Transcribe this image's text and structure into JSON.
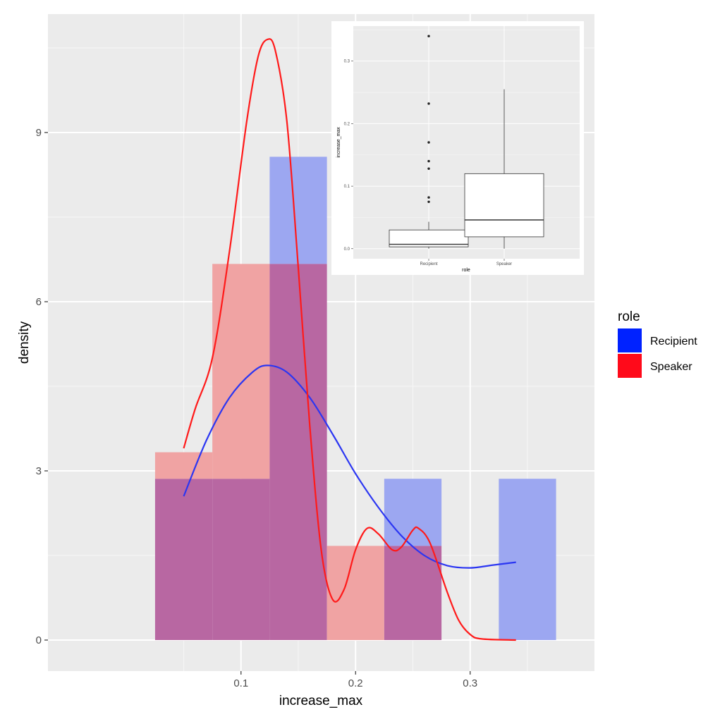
{
  "chart_data": [
    {
      "type": "histogram+density",
      "title": "",
      "xlabel": "increase_max",
      "ylabel": "density",
      "xlim": [
        -0.0685,
        0.4085
      ],
      "ylim": [
        -0.55,
        11.1
      ],
      "x_ticks": [
        0.1,
        0.2,
        0.3
      ],
      "x_tick_labels": [
        "0.1",
        "0.2",
        "0.3"
      ],
      "y_ticks": [
        0,
        3,
        6,
        9
      ],
      "y_tick_labels": [
        "0",
        "3",
        "6",
        "9"
      ],
      "grid": true,
      "legend": {
        "title": "role",
        "placement": "right",
        "entries": [
          "Recipient",
          "Speaker"
        ]
      },
      "colors": {
        "Recipient": "#0022ff",
        "Speaker": "#ff0a1a",
        "overlap": "#b867a2",
        "panel": "#ebebeb"
      },
      "series": [
        {
          "name": "Recipient",
          "bins": [
            {
              "x0": 0.025,
              "x1": 0.075,
              "density": 2.86
            },
            {
              "x0": 0.075,
              "x1": 0.125,
              "density": 2.86
            },
            {
              "x0": 0.125,
              "x1": 0.175,
              "density": 8.57
            },
            {
              "x0": 0.175,
              "x1": 0.225,
              "density": 0
            },
            {
              "x0": 0.225,
              "x1": 0.275,
              "density": 2.86
            },
            {
              "x0": 0.275,
              "x1": 0.325,
              "density": 0
            },
            {
              "x0": 0.325,
              "x1": 0.375,
              "density": 2.86
            }
          ],
          "density_curve": [
            [
              0.05,
              2.55
            ],
            [
              0.07,
              3.55
            ],
            [
              0.09,
              4.3
            ],
            [
              0.11,
              4.75
            ],
            [
              0.123,
              4.87
            ],
            [
              0.14,
              4.75
            ],
            [
              0.16,
              4.3
            ],
            [
              0.18,
              3.65
            ],
            [
              0.2,
              2.95
            ],
            [
              0.22,
              2.35
            ],
            [
              0.24,
              1.85
            ],
            [
              0.26,
              1.5
            ],
            [
              0.28,
              1.32
            ],
            [
              0.3,
              1.28
            ],
            [
              0.32,
              1.33
            ],
            [
              0.34,
              1.38
            ]
          ]
        },
        {
          "name": "Speaker",
          "bins": [
            {
              "x0": 0.025,
              "x1": 0.075,
              "density": 3.33
            },
            {
              "x0": 0.075,
              "x1": 0.125,
              "density": 6.67
            },
            {
              "x0": 0.125,
              "x1": 0.175,
              "density": 6.67
            },
            {
              "x0": 0.175,
              "x1": 0.225,
              "density": 1.67
            },
            {
              "x0": 0.225,
              "x1": 0.275,
              "density": 1.67
            },
            {
              "x0": 0.275,
              "x1": 0.325,
              "density": 0
            },
            {
              "x0": 0.325,
              "x1": 0.375,
              "density": 0
            }
          ],
          "density_curve": [
            [
              0.05,
              3.4
            ],
            [
              0.06,
              4.1
            ],
            [
              0.075,
              5.0
            ],
            [
              0.09,
              6.9
            ],
            [
              0.105,
              9.2
            ],
            [
              0.115,
              10.35
            ],
            [
              0.123,
              10.65
            ],
            [
              0.13,
              10.45
            ],
            [
              0.14,
              9.2
            ],
            [
              0.15,
              6.6
            ],
            [
              0.16,
              3.8
            ],
            [
              0.17,
              1.6
            ],
            [
              0.18,
              0.72
            ],
            [
              0.19,
              0.9
            ],
            [
              0.2,
              1.6
            ],
            [
              0.21,
              1.98
            ],
            [
              0.22,
              1.88
            ],
            [
              0.232,
              1.6
            ],
            [
              0.24,
              1.65
            ],
            [
              0.25,
              1.95
            ],
            [
              0.255,
              1.98
            ],
            [
              0.265,
              1.72
            ],
            [
              0.28,
              0.85
            ],
            [
              0.29,
              0.35
            ],
            [
              0.3,
              0.1
            ],
            [
              0.31,
              0.02
            ],
            [
              0.34,
              0.0
            ]
          ]
        }
      ]
    },
    {
      "type": "boxplot",
      "title": "",
      "xlabel": "role",
      "ylabel": "increase_max",
      "categories": [
        "Recipient",
        "Speaker"
      ],
      "y_ticks": [
        0.0,
        0.1,
        0.2,
        0.3
      ],
      "y_tick_labels": [
        "0.0",
        "0.1",
        "0.2",
        "0.3"
      ],
      "ylim": [
        -0.016,
        0.356
      ],
      "grid": true,
      "boxes": [
        {
          "name": "Recipient",
          "min": 0.0,
          "q1": 0.003,
          "median": 0.007,
          "q3": 0.03,
          "max": 0.043,
          "outliers": [
            0.075,
            0.082,
            0.128,
            0.14,
            0.17,
            0.232,
            0.34
          ]
        },
        {
          "name": "Speaker",
          "min": 0.0,
          "q1": 0.019,
          "median": 0.046,
          "q3": 0.12,
          "max": 0.255,
          "outliers": []
        }
      ]
    }
  ]
}
